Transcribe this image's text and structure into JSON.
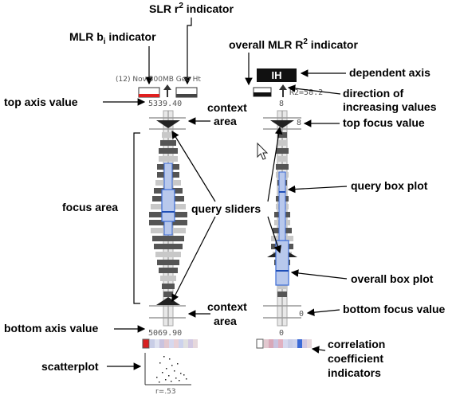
{
  "labels": {
    "slr_r2": "SLR r",
    "slr_r2_sup": "2",
    "slr_r2_rest": " indicator",
    "mlr_bi": "MLR b",
    "mlr_bi_sub": "i",
    "mlr_bi_rest": " indicator",
    "overall_mlr": "overall MLR R",
    "overall_mlr_sup": "2",
    "overall_mlr_rest": " indicator",
    "dependent_axis": "dependent axis",
    "direction_1": "direction of",
    "direction_2": "increasing values",
    "top_axis_value": "top axis value",
    "context_area_top_1": "context",
    "context_area_top_2": "area",
    "top_focus_value": "top focus value",
    "focus_area": "focus area",
    "query_sliders": "query sliders",
    "query_box_plot": "query box plot",
    "overall_box_plot": "overall box plot",
    "context_area_bottom_1": "context",
    "context_area_bottom_2": "area",
    "bottom_focus_value": "bottom focus value",
    "bottom_axis_value": "bottom axis value",
    "scatterplot": "scatterplot",
    "correlation_1": "correlation",
    "correlation_2": "coefficient",
    "correlation_3": "indicators"
  },
  "left_axis": {
    "name": "(12) Nov 500MB Geo Ht",
    "top_value": "5339.40",
    "bottom_value": "5069.90",
    "r_value": "r=.53"
  },
  "right_axis": {
    "name": "IH",
    "r2_value": "R2=58.2",
    "top_value": "8",
    "top_focus": "8",
    "bottom_value": "0",
    "bottom_focus": "0"
  },
  "colors": {
    "indicator_red": "#e02020",
    "indicator_dark": "#444444",
    "box_fill": "#b8c8ec",
    "box_stroke": "#3a6ad6",
    "hist_dark": "#555555",
    "hist_light": "#c8c8c8"
  },
  "icons": [
    "up-arrow-icon",
    "down-arrow-icon",
    "mouse-cursor-icon"
  ]
}
